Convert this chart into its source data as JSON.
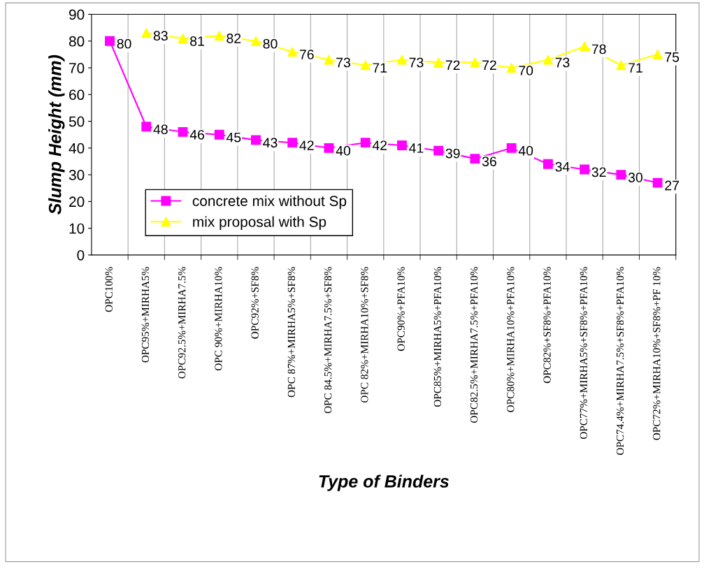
{
  "chart_data": {
    "type": "line",
    "xlabel": "Type of Binders",
    "ylabel": "Slump Height (mm)",
    "categories": [
      "OPC100%",
      "OPC95%+MIRHA5%",
      "OPC92.5%+MIRHA7.5%",
      "OPC 90%+MIRHA10%",
      "OPC92%+SF8%",
      "OPC 87%+MIRHA5%+SF8%",
      "OPC 84.5%+MIRHA7.5%+SF8%",
      "OPC 82%+MIRHA10%+SF8%",
      "OPC90%+PFA10%",
      "OPC85%+MIRHA5%+PFA10%",
      "OPC82.5%+MIRHA7.5%+PFA10%",
      "OPC80%+MIRHA10%+PFA10%",
      "OPC82%+SF8%+PFA10%",
      "OPC77%+MIRHA5%+SF8%+PFA10%",
      "OPC74.4%+MIRHA7.5%+SF8%+PFA10%",
      "OPC72%+MIRHA10%+SF8%+PF 10%"
    ],
    "series": [
      {
        "name": "concrete mix without Sp",
        "color": "#ff00ff",
        "marker": "square",
        "values": [
          80,
          48,
          46,
          45,
          43,
          42,
          40,
          42,
          41,
          39,
          36,
          40,
          34,
          32,
          30,
          27
        ]
      },
      {
        "name": "mix proposal with Sp",
        "color": "#ffff00",
        "marker": "triangle",
        "values": [
          null,
          83,
          81,
          82,
          80,
          76,
          73,
          71,
          73,
          72,
          72,
          70,
          73,
          78,
          71,
          75
        ]
      }
    ],
    "ylim": [
      0,
      90
    ],
    "yticks": [
      0,
      10,
      20,
      30,
      40,
      50,
      60,
      70,
      80,
      90
    ],
    "data_labels": true,
    "grid": "x",
    "legend": "bottom left",
    "line_style": "solid"
  }
}
